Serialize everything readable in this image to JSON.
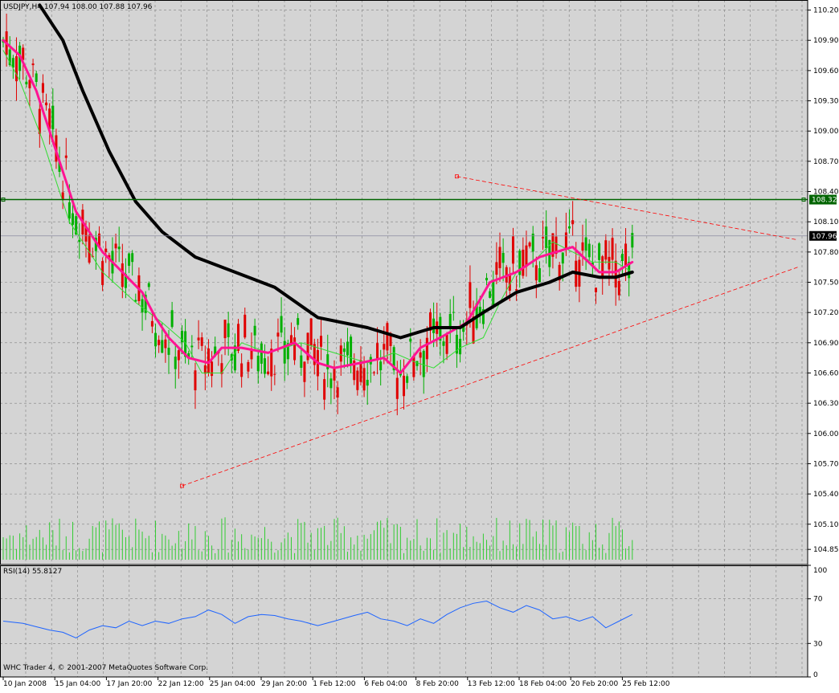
{
  "header": {
    "symbol_label": "USDJPY,H4",
    "ohlc_text": "107.94 108.00 107.88 107.96"
  },
  "rsi_header": {
    "label": "RSI(14) 55.8127"
  },
  "copyright": "WHC Trader 4, © 2001-2007 MetaQuotes Software Corp.",
  "colors": {
    "background": "#ffffff",
    "plot_background": "#d4d4d4",
    "grid": "#808080",
    "bull_candle": "#00b000",
    "bear_candle": "#e00000",
    "volume": "#33cc33",
    "ma_fast": "#33dd33",
    "ma_mid": "#ff1493",
    "ma_slow": "#000000",
    "level_line": "#006400",
    "bid_line": "#8c8ca0",
    "trendline": "#ff0000",
    "rsi_line": "#1e64ff"
  },
  "chart_data": [
    {
      "type": "candlestick",
      "symbol": "USDJPY",
      "timeframe": "H4",
      "ylim": [
        104.7,
        110.3
      ],
      "y_ticks": [
        "110.20",
        "109.90",
        "109.60",
        "109.30",
        "109.00",
        "108.70",
        "108.40",
        "108.10",
        "107.80",
        "107.50",
        "107.20",
        "106.90",
        "106.60",
        "106.30",
        "106.00",
        "105.70",
        "105.40",
        "105.10",
        "104.85"
      ],
      "x_tick_labels": [
        "10 Jan 2008",
        "15 Jan 04:00",
        "17 Jan 20:00",
        "22 Jan 12:00",
        "25 Jan 04:00",
        "29 Jan 20:00",
        "1 Feb 12:00",
        "6 Feb 04:00",
        "8 Feb 20:00",
        "13 Feb 12:00",
        "18 Feb 04:00",
        "20 Feb 20:00",
        "25 Feb 12:00"
      ],
      "grid": true,
      "horizontal_level": {
        "value": 108.32,
        "label": "108.32"
      },
      "current_price": {
        "value": 107.96,
        "label": "107.96"
      },
      "moving_averages": [
        {
          "role": "fast",
          "color": "#33dd33",
          "points": [
            [
              0,
              109.8
            ],
            [
              5,
              109.5
            ],
            [
              12,
              108.9
            ],
            [
              20,
              108.1
            ],
            [
              30,
              107.6
            ],
            [
              40,
              107.3
            ],
            [
              48,
              107.1
            ],
            [
              55,
              106.9
            ],
            [
              60,
              106.6
            ],
            [
              66,
              106.6
            ],
            [
              72,
              106.9
            ],
            [
              80,
              106.8
            ],
            [
              90,
              106.9
            ],
            [
              100,
              106.8
            ],
            [
              110,
              106.7
            ],
            [
              118,
              106.8
            ],
            [
              125,
              106.7
            ],
            [
              130,
              106.65
            ],
            [
              138,
              106.85
            ],
            [
              145,
              106.95
            ],
            [
              150,
              107.3
            ],
            [
              155,
              107.6
            ],
            [
              160,
              107.7
            ],
            [
              166,
              107.9
            ],
            [
              172,
              107.8
            ],
            [
              178,
              107.7
            ],
            [
              185,
              107.7
            ],
            [
              190,
              107.6
            ]
          ]
        },
        {
          "role": "mid",
          "color": "#ff1493",
          "points": [
            [
              0,
              109.9
            ],
            [
              5,
              109.75
            ],
            [
              10,
              109.4
            ],
            [
              16,
              108.8
            ],
            [
              22,
              108.2
            ],
            [
              30,
              107.8
            ],
            [
              36,
              107.6
            ],
            [
              42,
              107.4
            ],
            [
              46,
              107.15
            ],
            [
              50,
              106.95
            ],
            [
              56,
              106.75
            ],
            [
              62,
              106.7
            ],
            [
              66,
              106.85
            ],
            [
              72,
              106.85
            ],
            [
              80,
              106.8
            ],
            [
              88,
              106.9
            ],
            [
              95,
              106.7
            ],
            [
              100,
              106.65
            ],
            [
              108,
              106.7
            ],
            [
              115,
              106.75
            ],
            [
              120,
              106.6
            ],
            [
              126,
              106.85
            ],
            [
              132,
              106.95
            ],
            [
              140,
              107.1
            ],
            [
              147,
              107.5
            ],
            [
              155,
              107.6
            ],
            [
              162,
              107.75
            ],
            [
              172,
              107.85
            ],
            [
              180,
              107.6
            ],
            [
              185,
              107.6
            ],
            [
              190,
              107.7
            ]
          ]
        },
        {
          "role": "slow",
          "color": "#000000",
          "points": [
            [
              11,
              110.25
            ],
            [
              18,
              109.9
            ],
            [
              24,
              109.4
            ],
            [
              32,
              108.8
            ],
            [
              40,
              108.3
            ],
            [
              48,
              108.0
            ],
            [
              58,
              107.75
            ],
            [
              70,
              107.6
            ],
            [
              82,
              107.45
            ],
            [
              95,
              107.15
            ],
            [
              110,
              107.05
            ],
            [
              120,
              106.95
            ],
            [
              130,
              107.05
            ],
            [
              138,
              107.05
            ],
            [
              145,
              107.2
            ],
            [
              155,
              107.4
            ],
            [
              165,
              107.5
            ],
            [
              172,
              107.6
            ],
            [
              180,
              107.55
            ],
            [
              185,
              107.55
            ],
            [
              190,
              107.6
            ]
          ]
        }
      ],
      "trendlines": [
        {
          "name": "upper",
          "from": [
            137,
            108.55
          ],
          "to": [
            240,
            107.92
          ]
        },
        {
          "name": "lower",
          "from": [
            54,
            105.48
          ],
          "to": [
            240,
            107.65
          ]
        }
      ]
    },
    {
      "type": "bar",
      "role": "volume",
      "note": "volume histogram beneath price candles"
    },
    {
      "type": "line",
      "role": "RSI",
      "period": 14,
      "last_value": 55.8127,
      "ylim": [
        0,
        100
      ],
      "y_ticks": [
        "100",
        "70",
        "30",
        "0"
      ],
      "x_index_range": [
        0,
        190
      ],
      "points": [
        [
          0,
          50
        ],
        [
          6,
          48
        ],
        [
          10,
          45
        ],
        [
          14,
          42
        ],
        [
          18,
          40
        ],
        [
          22,
          35
        ],
        [
          26,
          42
        ],
        [
          30,
          46
        ],
        [
          34,
          44
        ],
        [
          38,
          50
        ],
        [
          42,
          46
        ],
        [
          46,
          50
        ],
        [
          50,
          48
        ],
        [
          54,
          52
        ],
        [
          58,
          54
        ],
        [
          62,
          60
        ],
        [
          66,
          56
        ],
        [
          70,
          48
        ],
        [
          74,
          54
        ],
        [
          78,
          56
        ],
        [
          82,
          55
        ],
        [
          86,
          52
        ],
        [
          90,
          50
        ],
        [
          95,
          46
        ],
        [
          100,
          50
        ],
        [
          106,
          55
        ],
        [
          110,
          58
        ],
        [
          114,
          52
        ],
        [
          118,
          50
        ],
        [
          122,
          46
        ],
        [
          126,
          52
        ],
        [
          130,
          48
        ],
        [
          134,
          56
        ],
        [
          138,
          62
        ],
        [
          142,
          66
        ],
        [
          146,
          68
        ],
        [
          150,
          62
        ],
        [
          154,
          58
        ],
        [
          158,
          64
        ],
        [
          162,
          60
        ],
        [
          166,
          52
        ],
        [
          170,
          54
        ],
        [
          174,
          50
        ],
        [
          178,
          54
        ],
        [
          182,
          44
        ],
        [
          186,
          50
        ],
        [
          190,
          56
        ]
      ]
    }
  ]
}
